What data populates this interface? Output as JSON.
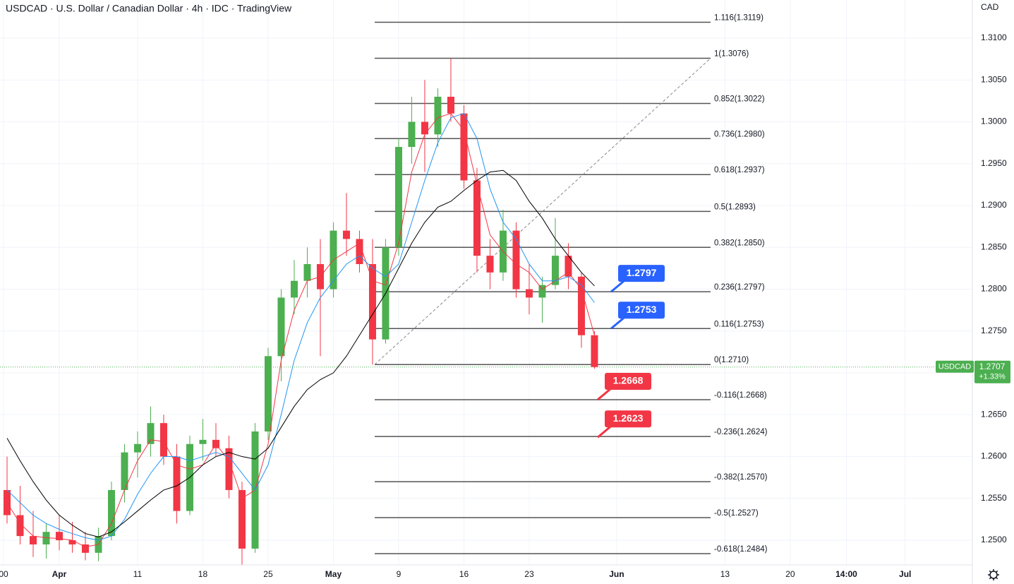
{
  "chart_data": {
    "type": "candlestick",
    "title": "USDCAD · U.S. Dollar / Canadian Dollar · 4h · IDC · TradingView",
    "currency": "CAD",
    "x": [
      -10,
      -9,
      -8,
      -7,
      -6,
      -5,
      -4,
      -3,
      -2,
      -1,
      0,
      1,
      2,
      3,
      4,
      5,
      6,
      7,
      8,
      9,
      10,
      11,
      12,
      13,
      14,
      15,
      16,
      17,
      18,
      19,
      20,
      21,
      22,
      23,
      24,
      25,
      26,
      27,
      28,
      29,
      30,
      31,
      32,
      33,
      34,
      35
    ],
    "open": [
      1.256,
      1.253,
      1.2505,
      1.2495,
      1.251,
      1.25,
      1.2495,
      1.2485,
      1.2505,
      1.256,
      1.2605,
      1.2615,
      1.264,
      1.26,
      1.2535,
      1.2615,
      1.262,
      1.261,
      1.256,
      1.249,
      1.263,
      1.272,
      1.279,
      1.281,
      1.283,
      1.28,
      1.287,
      1.286,
      1.283,
      1.274,
      1.285,
      1.297,
      1.3,
      1.2985,
      1.303,
      1.301,
      1.293,
      1.284,
      1.282,
      1.287,
      1.28,
      1.279,
      1.2805,
      1.284,
      1.2815,
      1.2745
    ],
    "high": [
      1.26,
      1.2565,
      1.2535,
      1.252,
      1.253,
      1.2522,
      1.251,
      1.2515,
      1.257,
      1.2615,
      1.263,
      1.266,
      1.265,
      1.2615,
      1.2625,
      1.2645,
      1.264,
      1.2625,
      1.257,
      1.264,
      1.273,
      1.28,
      1.2835,
      1.285,
      1.286,
      1.288,
      1.2915,
      1.287,
      1.286,
      1.286,
      1.298,
      1.303,
      1.305,
      1.304,
      1.3076,
      1.302,
      1.2945,
      1.286,
      1.2895,
      1.288,
      1.283,
      1.2815,
      1.2885,
      1.2855,
      1.282,
      1.275
    ],
    "low": [
      1.252,
      1.2495,
      1.248,
      1.2478,
      1.2488,
      1.2485,
      1.2476,
      1.2475,
      1.25,
      1.2545,
      1.2575,
      1.26,
      1.259,
      1.252,
      1.253,
      1.2595,
      1.26,
      1.255,
      1.247,
      1.2485,
      1.262,
      1.269,
      1.277,
      1.279,
      1.272,
      1.279,
      1.284,
      1.282,
      1.271,
      1.2735,
      1.284,
      1.295,
      1.294,
      1.297,
      1.3,
      1.292,
      1.282,
      1.28,
      1.281,
      1.279,
      1.277,
      1.276,
      1.28,
      1.28,
      1.273,
      1.2705
    ],
    "close": [
      1.253,
      1.2505,
      1.2495,
      1.251,
      1.25,
      1.2495,
      1.2485,
      1.2505,
      1.256,
      1.2605,
      1.2615,
      1.264,
      1.26,
      1.2535,
      1.2615,
      1.262,
      1.261,
      1.256,
      1.249,
      1.263,
      1.272,
      1.279,
      1.281,
      1.283,
      1.28,
      1.287,
      1.286,
      1.283,
      1.274,
      1.285,
      1.297,
      1.3,
      1.2985,
      1.303,
      1.301,
      1.293,
      1.284,
      1.282,
      1.287,
      1.28,
      1.279,
      1.2805,
      1.284,
      1.2815,
      1.2745,
      1.2707
    ],
    "up_color": "#4caf50",
    "down_color": "#f23645",
    "lines": [
      {
        "color": "#f23645",
        "values": [
          1.2545,
          1.252,
          1.2505,
          1.2503,
          1.2502,
          1.25,
          1.2492,
          1.2495,
          1.252,
          1.256,
          1.2595,
          1.262,
          1.2618,
          1.259,
          1.2585,
          1.259,
          1.2615,
          1.2595,
          1.255,
          1.256,
          1.2615,
          1.2715,
          1.2775,
          1.281,
          1.2815,
          1.2835,
          1.2845,
          1.2855,
          1.281,
          1.2805,
          1.2855,
          1.294,
          1.2985,
          1.3005,
          1.301,
          1.299,
          1.2925,
          1.2865,
          1.2845,
          1.283,
          1.282,
          1.28,
          1.281,
          1.282,
          1.28,
          1.2745
        ]
      },
      {
        "color": "#2196f3",
        "values": [
          1.256,
          1.2545,
          1.253,
          1.252,
          1.2513,
          1.2508,
          1.2503,
          1.25,
          1.2505,
          1.2525,
          1.2555,
          1.258,
          1.26,
          1.26,
          1.2595,
          1.26,
          1.2605,
          1.26,
          1.258,
          1.256,
          1.259,
          1.265,
          1.2715,
          1.276,
          1.279,
          1.281,
          1.283,
          1.284,
          1.2825,
          1.2815,
          1.283,
          1.288,
          1.293,
          1.2975,
          1.3005,
          1.301,
          1.298,
          1.292,
          1.288,
          1.286,
          1.283,
          1.281,
          1.281,
          1.2815,
          1.2805,
          1.2784
        ]
      },
      {
        "color": "#000000",
        "values": [
          1.2622,
          1.2595,
          1.257,
          1.2548,
          1.253,
          1.2518,
          1.2508,
          1.2504,
          1.251,
          1.2522,
          1.2535,
          1.2548,
          1.256,
          1.2565,
          1.2575,
          1.259,
          1.26,
          1.2605,
          1.26,
          1.2597,
          1.261,
          1.2635,
          1.266,
          1.268,
          1.2692,
          1.27,
          1.272,
          1.2745,
          1.277,
          1.2795,
          1.2825,
          1.2855,
          1.288,
          1.2898,
          1.2905,
          1.2918,
          1.293,
          1.294,
          1.2942,
          1.293,
          1.2905,
          1.2885,
          1.286,
          1.284,
          1.282,
          1.2804
        ]
      }
    ],
    "fib_levels": [
      {
        "label": "1.116(1.3119)",
        "value": 1.3119
      },
      {
        "label": "1(1.3076)",
        "value": 1.3076
      },
      {
        "label": "0.852(1.3022)",
        "value": 1.3022
      },
      {
        "label": "0.736(1.2980)",
        "value": 1.298
      },
      {
        "label": "0.618(1.2937)",
        "value": 1.2937
      },
      {
        "label": "0.5(1.2893)",
        "value": 1.2893
      },
      {
        "label": "0.382(1.2850)",
        "value": 1.285
      },
      {
        "label": "0.236(1.2797)",
        "value": 1.2797
      },
      {
        "label": "0.116(1.2753)",
        "value": 1.2753
      },
      {
        "label": "0(1.2710)",
        "value": 1.271
      },
      {
        "label": "-0.116(1.2668)",
        "value": 1.2668
      },
      {
        "label": "-0.236(1.2624)",
        "value": 1.2624
      },
      {
        "label": "-0.382(1.2570)",
        "value": 1.257
      },
      {
        "label": "-0.5(1.2527)",
        "value": 1.2527
      },
      {
        "label": "-0.618(1.2484)",
        "value": 1.2484
      }
    ],
    "callouts": [
      {
        "value": 1.2797,
        "color": "#2962ff"
      },
      {
        "value": 1.2753,
        "color": "#2962ff"
      },
      {
        "value": 1.2668,
        "color": "#f23645"
      },
      {
        "value": 1.2623,
        "color": "#f23645"
      }
    ],
    "last": {
      "symbol": "USDCAD",
      "value": 1.2707,
      "change": "+1.33%",
      "color": "#4caf50"
    },
    "xlim": [
      -10.54,
      63.95
    ],
    "ylim": [
      1.24705,
      1.31456
    ],
    "xticks": [
      {
        "value": -10.27,
        "label": "00"
      },
      {
        "value": -6,
        "label": "Apr"
      },
      {
        "value": 0,
        "label": "11"
      },
      {
        "value": 5,
        "label": "18"
      },
      {
        "value": 10,
        "label": "25"
      },
      {
        "value": 15,
        "label": "May"
      },
      {
        "value": 20,
        "label": "9"
      },
      {
        "value": 25,
        "label": "16"
      },
      {
        "value": 30,
        "label": "23"
      },
      {
        "value": 36.7,
        "label": "Jun"
      },
      {
        "value": 45,
        "label": "13"
      },
      {
        "value": 50,
        "label": "20"
      },
      {
        "value": 54.3,
        "label": "14:00"
      },
      {
        "value": 58.8,
        "label": "Jul"
      }
    ],
    "yticks": [
      {
        "value": 1.25,
        "label": "1.2500"
      },
      {
        "value": 1.255,
        "label": "1.2550"
      },
      {
        "value": 1.26,
        "label": "1.2600"
      },
      {
        "value": 1.265,
        "label": "1.2650"
      },
      {
        "value": 1.27,
        "label": "1.2700"
      },
      {
        "value": 1.275,
        "label": "1.2750"
      },
      {
        "value": 1.28,
        "label": "1.2800"
      },
      {
        "value": 1.285,
        "label": "1.2850"
      },
      {
        "value": 1.29,
        "label": "1.2900"
      },
      {
        "value": 1.295,
        "label": "1.2950"
      },
      {
        "value": 1.3,
        "label": "1.3000"
      },
      {
        "value": 1.305,
        "label": "1.3050"
      },
      {
        "value": 1.31,
        "label": "1.3100"
      }
    ],
    "grid": true
  }
}
